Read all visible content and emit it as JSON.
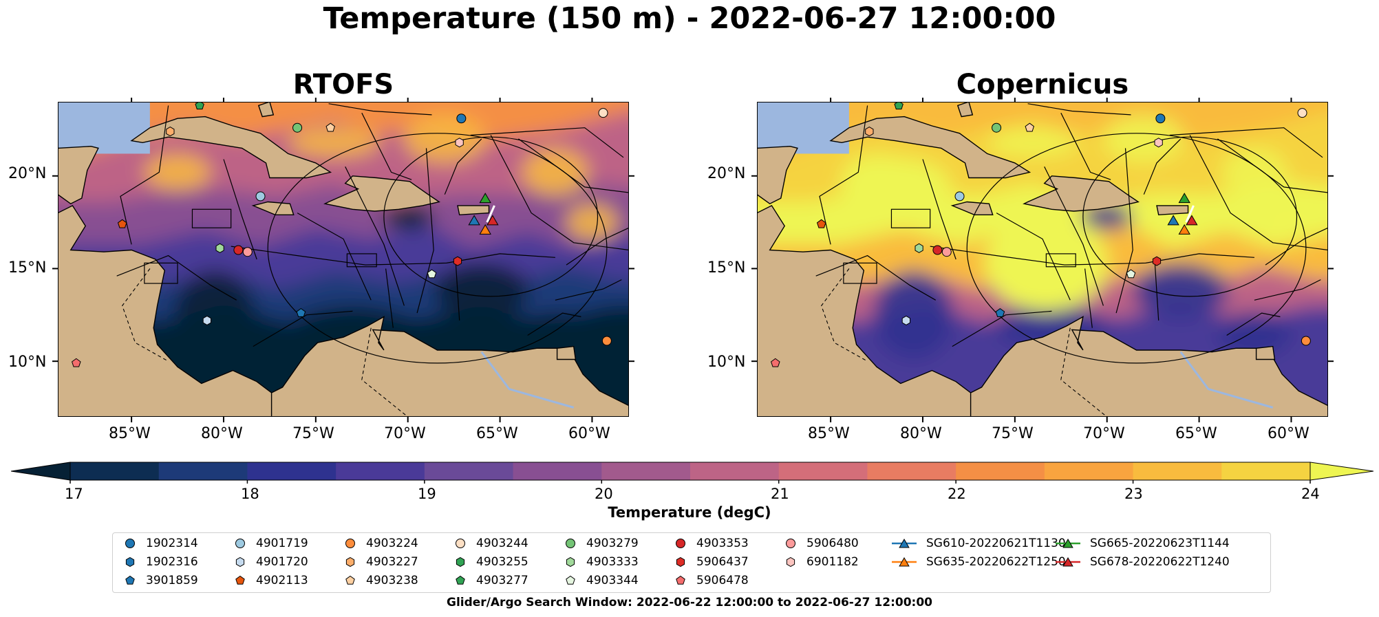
{
  "figure": {
    "title": "Temperature (150 m) - 2022-06-27 12:00:00",
    "footer": "Glider/Argo Search Window: 2022-06-22 12:00:00 to 2022-06-27 12:00:00"
  },
  "map_extent": {
    "lon_min": -89,
    "lon_max": -58,
    "lat_min": 7,
    "lat_max": 24
  },
  "panels": [
    {
      "title": "RTOFS",
      "model": "rtofs"
    },
    {
      "title": "Copernicus",
      "model": "copernicus"
    }
  ],
  "axes": {
    "lon_ticks": [
      "85°W",
      "80°W",
      "75°W",
      "70°W",
      "65°W",
      "60°W"
    ],
    "lat_ticks": [
      "20°N",
      "15°N",
      "10°N"
    ]
  },
  "colorbar": {
    "label": "Temperature (degC)",
    "ticks": [
      "17",
      "18",
      "19",
      "20",
      "21",
      "22",
      "23",
      "24"
    ],
    "min": 17,
    "max": 24,
    "step": 0.5,
    "colors": [
      "#0d2d52",
      "#1d3a78",
      "#2e328f",
      "#4a3a98",
      "#6a4a98",
      "#884f92",
      "#a25a8d",
      "#bd6486",
      "#d46e79",
      "#e87c62",
      "#f48f45",
      "#f9a43f",
      "#f9bb3e",
      "#f5d341"
    ],
    "under_color": "#062135",
    "over_color": "#eef552"
  },
  "colors": {
    "land": "#d1b389",
    "ocean_shallow": "#9cb7df",
    "ocean_deep": "#062135"
  },
  "legend": {
    "argo": [
      {
        "id": "1902314",
        "marker": "circle",
        "color": "#1f77b4"
      },
      {
        "id": "1902316",
        "marker": "hexagon",
        "color": "#1f77b4"
      },
      {
        "id": "3901859",
        "marker": "pentagon",
        "color": "#1f77b4"
      },
      {
        "id": "4901719",
        "marker": "circle",
        "color": "#9ecae1"
      },
      {
        "id": "4901720",
        "marker": "hexagon",
        "color": "#c6dbef"
      },
      {
        "id": "4902113",
        "marker": "pentagon",
        "color": "#e6550d"
      },
      {
        "id": "4903224",
        "marker": "circle",
        "color": "#fd8d3c"
      },
      {
        "id": "4903227",
        "marker": "hexagon",
        "color": "#fdae6b"
      },
      {
        "id": "4903238",
        "marker": "pentagon",
        "color": "#fdd0a2"
      },
      {
        "id": "4903244",
        "marker": "circle",
        "color": "#fde0c5"
      },
      {
        "id": "4903255",
        "marker": "hexagon",
        "color": "#31a354"
      },
      {
        "id": "4903277",
        "marker": "pentagon",
        "color": "#31a354"
      },
      {
        "id": "4903279",
        "marker": "circle",
        "color": "#74c476"
      },
      {
        "id": "4903333",
        "marker": "hexagon",
        "color": "#a1d99b"
      },
      {
        "id": "4903344",
        "marker": "pentagon",
        "color": "#e5f5e0"
      },
      {
        "id": "4903353",
        "marker": "circle",
        "color": "#d62728"
      },
      {
        "id": "5906437",
        "marker": "hexagon",
        "color": "#de2d26"
      },
      {
        "id": "5906478",
        "marker": "pentagon",
        "color": "#f46d6d"
      },
      {
        "id": "5906480",
        "marker": "circle",
        "color": "#fc9b9b"
      },
      {
        "id": "6901182",
        "marker": "hexagon",
        "color": "#fcc5c0"
      }
    ],
    "gliders": [
      {
        "id": "SG610-20220621T1130",
        "color": "#1f77b4"
      },
      {
        "id": "SG635-20220622T1250",
        "color": "#ff7f0e"
      },
      {
        "id": "SG665-20220623T1144",
        "color": "#2ca02c"
      },
      {
        "id": "SG678-20220622T1240",
        "color": "#d62728"
      }
    ]
  }
}
